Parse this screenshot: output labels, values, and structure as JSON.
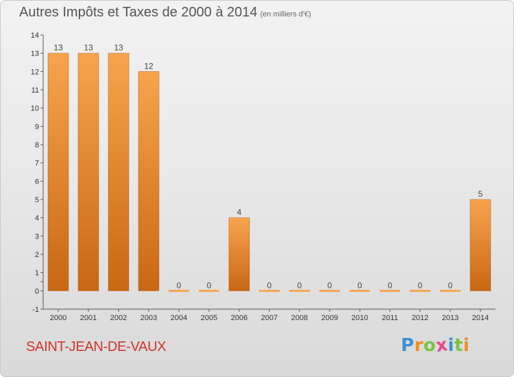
{
  "header": {
    "title": "Autres Impôts et Taxes de 2000 à 2014",
    "subtitle": "(en milliers d'€)"
  },
  "footer": {
    "commune": "SAINT-JEAN-DE-VAUX",
    "logo": [
      "P",
      "r",
      "o",
      "x",
      "i",
      "t",
      "i"
    ]
  },
  "colors": {
    "bar_light": "#f7a44f",
    "bar_dark": "#c96714",
    "title": "#555555",
    "commune": "#d0342c",
    "logo": [
      "#3d8fd6",
      "#f28c1e",
      "#7cc242",
      "#e84a8c",
      "#3d8fd6",
      "#7cc242",
      "#f28c1e"
    ]
  },
  "chart_data": {
    "type": "bar",
    "title": "Autres Impôts et Taxes de 2000 à 2014",
    "subtitle": "(en milliers d'€)",
    "categories": [
      "2000",
      "2001",
      "2002",
      "2003",
      "2004",
      "2005",
      "2006",
      "2007",
      "2008",
      "2009",
      "2010",
      "2011",
      "2012",
      "2013",
      "2014"
    ],
    "values": [
      13,
      13,
      13,
      12,
      0,
      0,
      4,
      0,
      0,
      0,
      0,
      0,
      0,
      0,
      5
    ],
    "ylim": [
      -1,
      14
    ],
    "yticks": [
      "-1",
      "0",
      "",
      "1",
      "2",
      "3",
      "4",
      "5",
      "6",
      "7",
      "8",
      "9",
      "10",
      "11",
      "12",
      "13",
      "14"
    ],
    "ytick_values": [
      -1,
      0,
      0.5,
      1,
      2,
      3,
      4,
      5,
      6,
      7,
      8,
      9,
      10,
      11,
      12,
      13,
      14
    ],
    "grid": false,
    "legend": "none"
  }
}
